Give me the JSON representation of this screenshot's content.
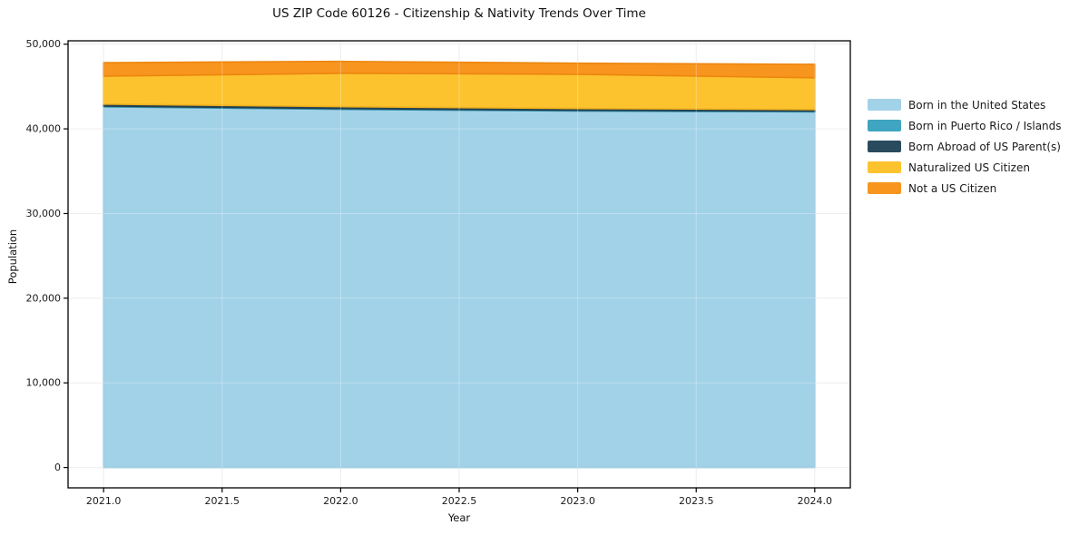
{
  "figure": {
    "title": "US ZIP Code 60126 - Citizenship & Nativity Trends Over Time",
    "xlabel": "Year",
    "ylabel": "Population"
  },
  "chart_data": {
    "type": "area",
    "stacked": true,
    "title": "US ZIP Code 60126 - Citizenship & Nativity Trends Over Time",
    "xlabel": "Year",
    "ylabel": "Population",
    "grid": true,
    "legend_position": "right-outside",
    "x": [
      2021,
      2022,
      2023,
      2024
    ],
    "series": [
      {
        "name": "Born in the United States",
        "color": "#A2D2E8",
        "edge_color": "#8CC2DC",
        "values": [
          42600,
          42300,
          42100,
          42000
        ]
      },
      {
        "name": "Born in Puerto Rico / Islands",
        "color": "#3FA5C0",
        "edge_color": "#3693AD",
        "values": [
          100,
          100,
          100,
          100
        ]
      },
      {
        "name": "Born Abroad of US Parent(s)",
        "color": "#2A4B5E",
        "edge_color": "#223E4E",
        "values": [
          220,
          220,
          200,
          180
        ]
      },
      {
        "name": "Naturalized US Citizen",
        "color": "#FCC32F",
        "edge_color": "#EFB01C",
        "values": [
          3300,
          3950,
          4050,
          3750
        ]
      },
      {
        "name": "Not a US Citizen",
        "color": "#F8951F",
        "edge_color": "#ED860E",
        "values": [
          1600,
          1400,
          1300,
          1600
        ]
      }
    ],
    "xlim": [
      2020.85,
      2024.15
    ],
    "ylim": [
      -2400,
      50400
    ],
    "xticks": {
      "values": [
        2021.0,
        2021.5,
        2022.0,
        2022.5,
        2023.0,
        2023.5,
        2024.0
      ],
      "labels": [
        "2021.0",
        "2021.5",
        "2022.0",
        "2022.5",
        "2023.0",
        "2023.5",
        "2024.0"
      ]
    },
    "yticks": {
      "values": [
        0,
        10000,
        20000,
        30000,
        40000,
        50000
      ],
      "labels": [
        "0",
        "10,000",
        "20,000",
        "30,000",
        "40,000",
        "50,000"
      ]
    },
    "axis_colors": {
      "spine": "#000000",
      "tick_label": "#1a1a1a",
      "grid_under": "#e7e7e7",
      "grid_over": "rgba(255,255,255,0.30)"
    }
  }
}
